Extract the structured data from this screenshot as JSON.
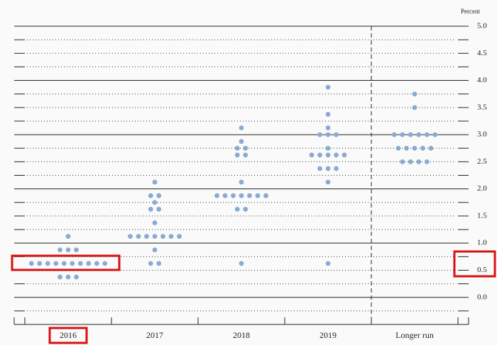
{
  "chart_data": {
    "type": "dot",
    "y_axis_label": "Percent",
    "categories": [
      "2016",
      "2017",
      "2018",
      "2019",
      "Longer run"
    ],
    "values": [
      [
        0.375,
        0.375,
        0.375,
        0.625,
        0.625,
        0.625,
        0.625,
        0.625,
        0.625,
        0.625,
        0.625,
        0.625,
        0.625,
        0.875,
        0.875,
        0.875,
        1.125
      ],
      [
        0.625,
        0.625,
        0.875,
        1.125,
        1.125,
        1.125,
        1.125,
        1.125,
        1.125,
        1.125,
        1.375,
        1.625,
        1.625,
        1.75,
        1.875,
        1.875,
        2.125
      ],
      [
        0.625,
        1.625,
        1.625,
        1.875,
        1.875,
        1.875,
        1.875,
        1.875,
        1.875,
        1.875,
        2.125,
        2.625,
        2.625,
        2.75,
        2.75,
        2.875,
        3.125
      ],
      [
        0.625,
        2.125,
        2.375,
        2.375,
        2.375,
        2.625,
        2.625,
        2.625,
        2.625,
        2.625,
        2.75,
        3.0,
        3.0,
        3.0,
        3.125,
        3.375,
        3.875
      ],
      [
        2.5,
        2.5,
        2.5,
        2.5,
        2.75,
        2.75,
        2.75,
        2.75,
        2.75,
        3.0,
        3.0,
        3.0,
        3.0,
        3.0,
        3.0,
        3.5,
        3.75
      ]
    ],
    "color": "#8aaad2",
    "ylim": [
      -0.5,
      5.0
    ],
    "yticks": [
      {
        "value": 0,
        "label": "0.0"
      },
      0.5,
      {
        "value": 1,
        "label": "1.0"
      },
      1.5,
      {
        "value": 2,
        "label": "2.0"
      },
      2.5,
      {
        "value": 3,
        "label": "3.0"
      },
      3.5,
      {
        "value": 4,
        "label": "4.0"
      },
      4.5,
      {
        "value": 5,
        "label": "5.0"
      }
    ],
    "yminor": [
      -0.25,
      0.25,
      0.75,
      1.25,
      1.75,
      2.25,
      2.75,
      3.25,
      3.75,
      4.25,
      4.75
    ],
    "grid": true
  }
}
